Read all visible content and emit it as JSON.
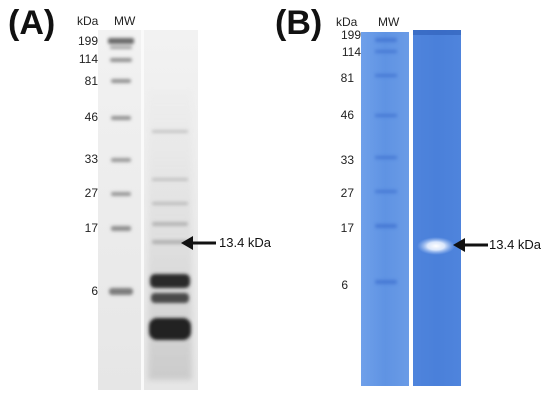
{
  "panels": [
    {
      "label": "(A)",
      "unit_label": "kDa",
      "lane_label": "MW",
      "markers": [
        "199",
        "114",
        "81",
        "46",
        "33",
        "27",
        "17",
        "6"
      ],
      "annotation": "13.4 kDa",
      "stain": "silver",
      "colors": {
        "gel": "#ececec",
        "band": "#2b2b2b"
      }
    },
    {
      "label": "(B)",
      "unit_label": "kDa",
      "lane_label": "MW",
      "markers": [
        "199",
        "114",
        "81",
        "46",
        "33",
        "27",
        "17",
        "6"
      ],
      "annotation": "13.4 kDa",
      "stain": "coomassie",
      "colors": {
        "gel": "#5d8fe0",
        "band": "#3d6fd0",
        "glow": "#ffffff"
      }
    }
  ]
}
